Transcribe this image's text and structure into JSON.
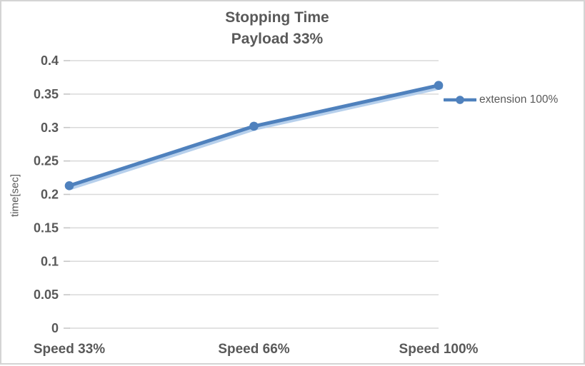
{
  "title": {
    "line1": "Stopping Time",
    "line2": "Payload 33%"
  },
  "y_axis": {
    "title": "time[sec]"
  },
  "legend": {
    "label": "extension 100%"
  },
  "chart_data": {
    "type": "line",
    "title": "Stopping Time",
    "subtitle": "Payload 33%",
    "categories": [
      "Speed 33%",
      "Speed 66%",
      "Speed 100%"
    ],
    "series": [
      {
        "name": "extension 100%",
        "values": [
          0.213,
          0.302,
          0.363
        ]
      }
    ],
    "xlabel": "",
    "ylabel": "time[sec]",
    "ylim": [
      0,
      0.4
    ],
    "ytick_interval": 0.05,
    "yticks": [
      "0",
      "0.05",
      "0.1",
      "0.15",
      "0.2",
      "0.25",
      "0.3",
      "0.35",
      "0.4"
    ],
    "grid": true,
    "legend_position": "right",
    "marker": "circle"
  },
  "colors": {
    "series": "#4F81BD",
    "series_shadow": "#AFCBEA",
    "grid": "#D9D9D9",
    "tick": "#C6C6C6",
    "text": "#595959",
    "border": "#D4D4D4"
  }
}
